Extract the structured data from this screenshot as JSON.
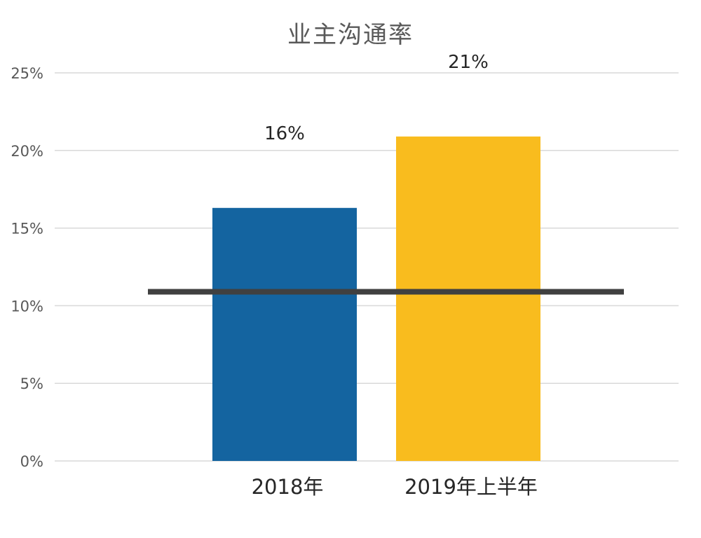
{
  "chart_data": {
    "type": "bar",
    "title": "业主沟通率",
    "categories": [
      "2018年",
      "2019年上半年"
    ],
    "series": [
      {
        "values": [
          16.3,
          20.9
        ],
        "colors": [
          "#1464A0",
          "#F9BC1E"
        ],
        "data_labels": [
          "16%",
          "21%"
        ]
      }
    ],
    "reference_line": {
      "value": 10.9,
      "color": "#404040"
    },
    "ylim": [
      0,
      25
    ],
    "yticks": [
      0,
      5,
      10,
      15,
      20,
      25
    ],
    "ytick_labels": [
      "0%",
      "5%",
      "10%",
      "15%",
      "20%",
      "25%"
    ],
    "grid": true,
    "gridline_color": "#D9D9D9",
    "tick_label_color": "#595959",
    "category_label_color": "#262626",
    "data_label_color": "#262626"
  }
}
